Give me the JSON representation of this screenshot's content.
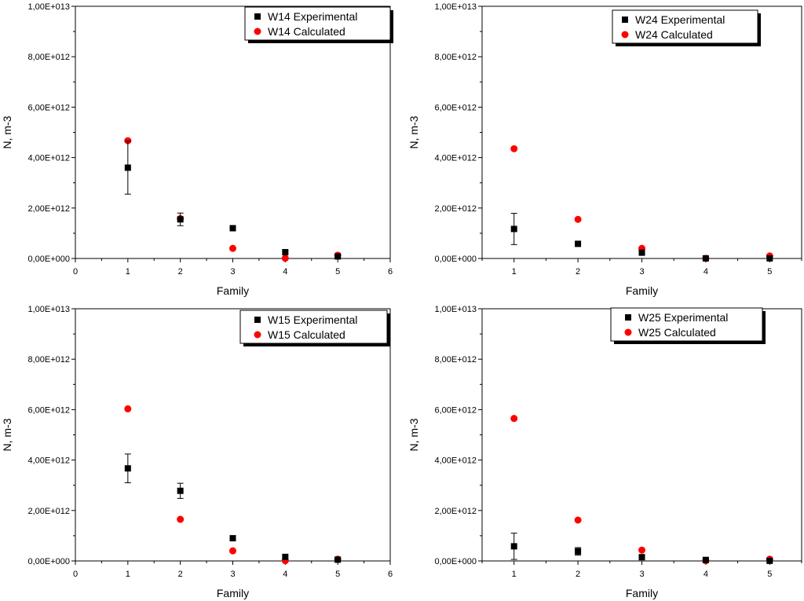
{
  "chart_data": [
    {
      "type": "scatter",
      "title": "",
      "xlabel": "Family",
      "ylabel": "N, m-3",
      "xlim": [
        0,
        6
      ],
      "ylim": [
        0,
        10000000000000.0
      ],
      "xticks": [
        "0",
        "1",
        "2",
        "3",
        "4",
        "5",
        "6"
      ],
      "yticks": [
        "0,00E+000",
        "2,00E+012",
        "4,00E+012",
        "6,00E+012",
        "8,00E+012",
        "1,00E+013"
      ],
      "legend_position": "top-right",
      "series": [
        {
          "name": "W14 Experimental",
          "marker": "square",
          "color": "#000000",
          "x": [
            1,
            2,
            3,
            4,
            5
          ],
          "y": [
            3600000000000.0,
            1550000000000.0,
            1200000000000.0,
            250000000000.0,
            80000000000.0
          ],
          "err": [
            1050000000000.0,
            250000000000.0,
            0,
            0,
            0
          ]
        },
        {
          "name": "W14 Calculated",
          "marker": "circle",
          "color": "#ff0000",
          "x": [
            1,
            2,
            3,
            4,
            5
          ],
          "y": [
            4670000000000.0,
            1580000000000.0,
            400000000000.0,
            10000000000.0,
            130000000000.0
          ]
        }
      ]
    },
    {
      "type": "scatter",
      "title": "",
      "xlabel": "Family",
      "ylabel": "N, m-3",
      "xlim": [
        0.5,
        5.5
      ],
      "ylim": [
        0,
        10000000000000.0
      ],
      "xticks": [
        "1",
        "2",
        "3",
        "4",
        "5"
      ],
      "yticks": [
        "0,00E+000",
        "2,00E+012",
        "4,00E+012",
        "6,00E+012",
        "8,00E+012",
        "1,00E+013"
      ],
      "legend_position": "top-right",
      "series": [
        {
          "name": "W24 Experimental",
          "marker": "square",
          "color": "#000000",
          "x": [
            1,
            2,
            3,
            4,
            5
          ],
          "y": [
            1170000000000.0,
            580000000000.0,
            230000000000.0,
            5000000000.0,
            5000000000.0
          ],
          "err": [
            620000000000.0,
            0,
            0,
            0,
            0
          ]
        },
        {
          "name": "W24 Calculated",
          "marker": "circle",
          "color": "#ff0000",
          "x": [
            1,
            2,
            3,
            4,
            5
          ],
          "y": [
            4350000000000.0,
            1550000000000.0,
            400000000000.0,
            5000000000.0,
            100000000000.0
          ]
        }
      ]
    },
    {
      "type": "scatter",
      "title": "",
      "xlabel": "Family",
      "ylabel": "N, m-3",
      "xlim": [
        0,
        6
      ],
      "ylim": [
        0,
        10000000000000.0
      ],
      "xticks": [
        "0",
        "1",
        "2",
        "3",
        "4",
        "5",
        "6"
      ],
      "yticks": [
        "0,00E+000",
        "2,00E+012",
        "4,00E+012",
        "6,00E+012",
        "8,00E+012",
        "1,00E+013"
      ],
      "legend_position": "top-right",
      "series": [
        {
          "name": "W15 Experimental",
          "marker": "square",
          "color": "#000000",
          "x": [
            1,
            2,
            3,
            4,
            5
          ],
          "y": [
            3670000000000.0,
            2780000000000.0,
            900000000000.0,
            160000000000.0,
            50000000000.0
          ],
          "err": [
            570000000000.0,
            300000000000.0,
            0,
            0,
            0
          ]
        },
        {
          "name": "W15 Calculated",
          "marker": "circle",
          "color": "#ff0000",
          "x": [
            1,
            2,
            3,
            4,
            5
          ],
          "y": [
            6030000000000.0,
            1650000000000.0,
            400000000000.0,
            10000000000.0,
            70000000000.0
          ]
        }
      ]
    },
    {
      "type": "scatter",
      "title": "",
      "xlabel": "Family",
      "ylabel": "N, m-3",
      "xlim": [
        0.5,
        5.5
      ],
      "ylim": [
        0,
        10000000000000.0
      ],
      "xticks": [
        "1",
        "2",
        "3",
        "4",
        "5"
      ],
      "yticks": [
        "0,00E+000",
        "2,00E+012",
        "4,00E+012",
        "6,00E+012",
        "8,00E+012",
        "1,00E+013"
      ],
      "legend_position": "top-right",
      "series": [
        {
          "name": "W25 Experimental",
          "marker": "square",
          "color": "#000000",
          "x": [
            1,
            2,
            3,
            4,
            5
          ],
          "y": [
            580000000000.0,
            380000000000.0,
            150000000000.0,
            40000000000.0,
            5000000000.0
          ],
          "err": [
            520000000000.0,
            150000000000.0,
            0,
            0,
            0
          ]
        },
        {
          "name": "W25 Calculated",
          "marker": "circle",
          "color": "#ff0000",
          "x": [
            1,
            2,
            3,
            4,
            5
          ],
          "y": [
            5650000000000.0,
            1620000000000.0,
            430000000000.0,
            10000000000.0,
            70000000000.0
          ]
        }
      ]
    }
  ]
}
